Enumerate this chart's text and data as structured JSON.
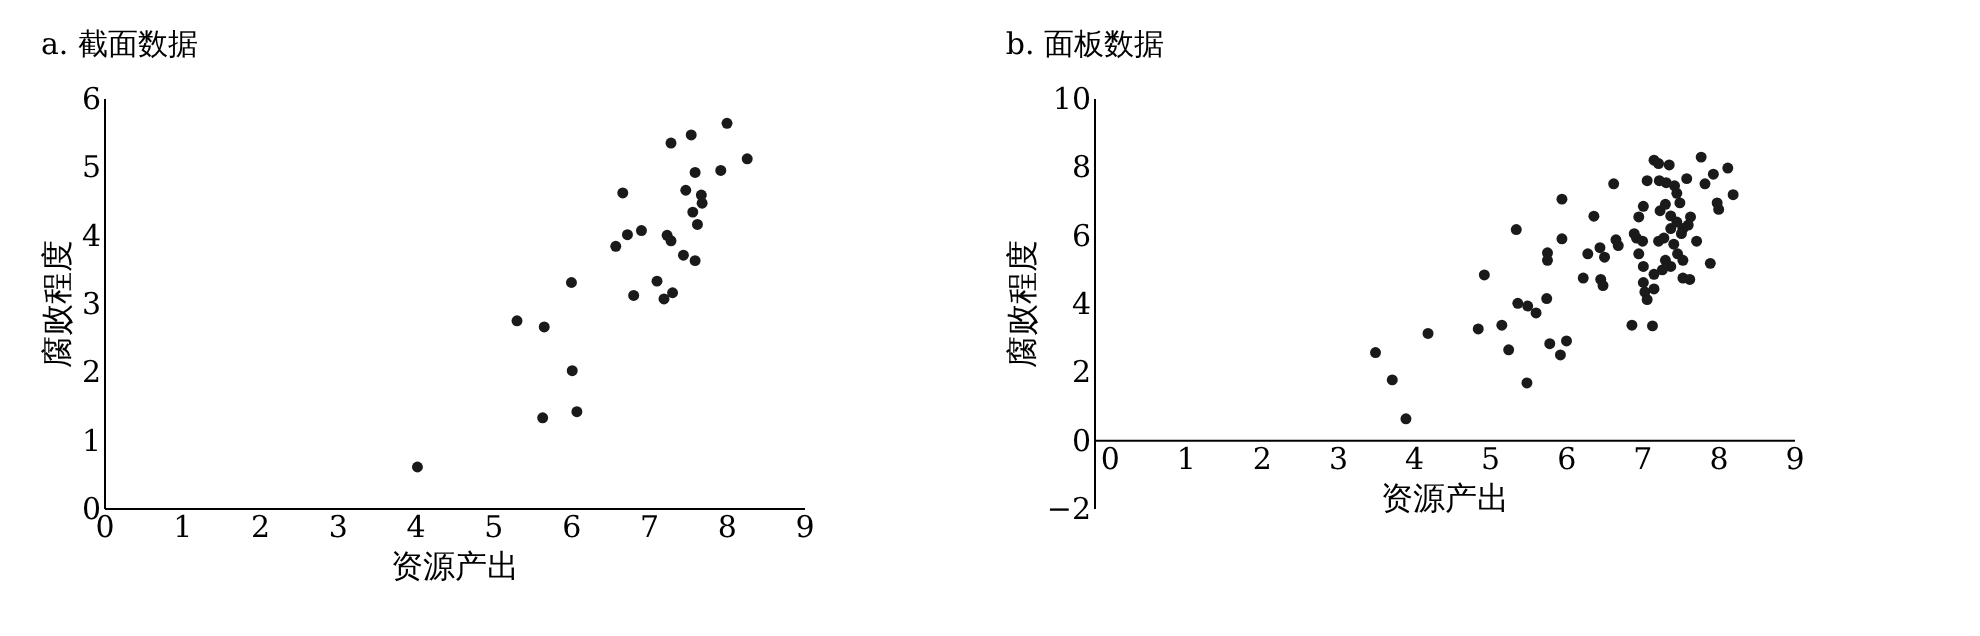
{
  "chart_data": [
    {
      "type": "scatter",
      "title": "a. 截面数据",
      "xlabel": "资源产出",
      "ylabel": "腐败程度",
      "color": "#1a1a1a",
      "marker": "circle",
      "grid": false,
      "x": [
        4.03,
        5.31,
        5.66,
        5.64,
        6.01,
        6.02,
        6.08,
        6.58,
        6.67,
        6.73,
        6.91,
        6.81,
        7.11,
        7.2,
        7.31,
        7.24,
        7.29,
        7.29,
        7.55,
        7.45,
        7.6,
        7.48,
        7.6,
        7.57,
        7.63,
        7.68,
        7.69,
        7.93,
        8.01,
        8.27
      ],
      "values": [
        0.6,
        2.74,
        2.65,
        1.32,
        3.3,
        2.01,
        1.41,
        3.83,
        4.61,
        4.0,
        4.06,
        3.11,
        3.32,
        3.06,
        3.15,
        3.99,
        3.91,
        5.34,
        5.46,
        3.7,
        3.62,
        4.65,
        4.91,
        4.33,
        4.15,
        4.58,
        4.46,
        4.94,
        5.63,
        5.11
      ],
      "xlim": [
        0,
        9
      ],
      "ylim": [
        0,
        6
      ],
      "xticks": [
        0,
        1,
        2,
        3,
        4,
        5,
        6,
        7,
        8,
        9
      ],
      "yticks": [
        0,
        1,
        2,
        3,
        4,
        5,
        6
      ]
    },
    {
      "type": "scatter",
      "title": "b. 面板数据",
      "xlabel": "资源产出",
      "ylabel": "腐败程度",
      "color": "#1a1a1a",
      "marker": "circle",
      "grid": false,
      "x": [
        3.5,
        3.72,
        3.9,
        4.19,
        4.85,
        4.93,
        5.16,
        5.25,
        5.35,
        5.37,
        5.5,
        5.49,
        5.61,
        5.75,
        5.76,
        5.76,
        5.79,
        5.93,
        6.01,
        5.95,
        5.95,
        6.23,
        6.29,
        6.37,
        6.45,
        6.46,
        6.49,
        6.51,
        6.63,
        6.66,
        6.69,
        6.87,
        7.14,
        6.9,
        6.93,
        6.96,
        6.96,
        7.02,
        7.01,
        7.02,
        7.02,
        7.04,
        7.07,
        7.16,
        7.16,
        7.07,
        7.16,
        7.22,
        7.36,
        7.23,
        7.32,
        7.43,
        7.59,
        7.24,
        7.31,
        7.38,
        7.46,
        7.5,
        7.22,
        7.29,
        7.38,
        7.42,
        7.46,
        7.54,
        7.61,
        7.64,
        7.52,
        7.31,
        7.38,
        7.47,
        7.54,
        7.27,
        7.54,
        7.63,
        7.72,
        7.78,
        7.83,
        7.94,
        8.13,
        7.99,
        8.01,
        7.9,
        8.2
      ],
      "values": [
        2.55,
        1.75,
        0.61,
        3.11,
        3.24,
        4.82,
        3.35,
        2.63,
        6.15,
        3.99,
        3.91,
        1.66,
        3.71,
        4.13,
        5.47,
        5.25,
        2.81,
        2.48,
        2.89,
        7.04,
        5.88,
        4.73,
        5.44,
        6.54,
        5.62,
        4.69,
        4.51,
        5.34,
        7.49,
        5.85,
        5.68,
        3.35,
        3.33,
        6.03,
        5.9,
        5.44,
        6.52,
        6.83,
        5.81,
        5.07,
        4.6,
        4.32,
        4.1,
        4.41,
        4.84,
        7.58,
        8.18,
        8.08,
        8.04,
        7.58,
        7.52,
        7.43,
        7.64,
        6.7,
        6.89,
        6.55,
        7.21,
        6.93,
        5.81,
        5.9,
        6.18,
        5.72,
        6.37,
        6.18,
        6.28,
        6.52,
        6.03,
        5.25,
        5.07,
        5.44,
        5.25,
        4.97,
        4.73,
        4.69,
        5.81,
        8.27,
        7.49,
        7.77,
        7.95,
        6.93,
        6.74,
        5.16,
        7.17
      ],
      "xlim": [
        -0.2,
        9
      ],
      "ylim": [
        -2,
        10
      ],
      "xticks": [
        0,
        1,
        2,
        3,
        4,
        5,
        6,
        7,
        8,
        9
      ],
      "yticks": [
        -2,
        0,
        2,
        4,
        6,
        8,
        10
      ]
    }
  ]
}
